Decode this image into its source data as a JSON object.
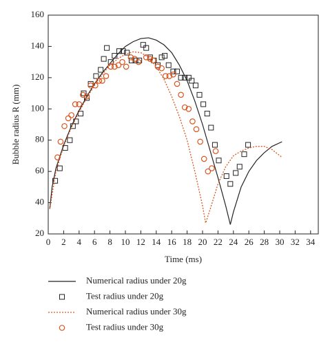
{
  "chart_data": {
    "type": "line",
    "x_label": "Time (ms)",
    "y_label": "Bubble radius R (mm)",
    "xlim": [
      0,
      35
    ],
    "ylim": [
      20,
      160
    ],
    "xticks": [
      0,
      2,
      4,
      6,
      8,
      10,
      12,
      14,
      16,
      18,
      20,
      22,
      24,
      26,
      28,
      30,
      32,
      34
    ],
    "yticks": [
      20,
      40,
      60,
      80,
      100,
      120,
      140,
      160
    ],
    "legend": "bottom",
    "series": [
      {
        "name": "Numerical radius under 20g",
        "color": "#222222",
        "style": "solid",
        "x": [
          0.2,
          0.5,
          1,
          2,
          3,
          4,
          5,
          6,
          7,
          8,
          9,
          10,
          11,
          12,
          13,
          14,
          15,
          16,
          17,
          18,
          19,
          20,
          21,
          22,
          23,
          23.6,
          24,
          25,
          26,
          27,
          28,
          29,
          30.3
        ],
        "values": [
          36,
          50,
          62,
          77,
          89,
          99,
          108,
          116,
          123,
          129,
          135,
          140,
          143,
          145,
          145.5,
          144,
          141,
          136,
          128,
          118,
          105,
          90,
          73,
          56,
          38,
          26,
          34,
          50,
          60,
          67,
          72,
          76,
          79
        ]
      },
      {
        "name": "Test radius under 20g",
        "color": "#222222",
        "style": "square",
        "x": [
          0.9,
          1.5,
          2.2,
          2.8,
          3.2,
          3.6,
          4.2,
          4.6,
          5.0,
          5.5,
          6.2,
          6.8,
          7.2,
          7.6,
          8.1,
          8.6,
          9.2,
          9.7,
          10.2,
          10.8,
          11.3,
          11.8,
          12.3,
          12.7,
          13.2,
          13.7,
          14.2,
          14.7,
          15.1,
          15.6,
          16.2,
          16.7,
          17.2,
          17.7,
          18.2,
          18.6,
          19.1,
          19.6,
          20.1,
          20.6,
          21.1,
          21.6,
          22.1,
          23.1,
          23.6,
          24.3,
          24.8,
          25.4,
          25.9
        ],
        "values": [
          54,
          62,
          75,
          80,
          89,
          92,
          97,
          110,
          107,
          116,
          121,
          125,
          132,
          139,
          130,
          134,
          137,
          137,
          136,
          131,
          131,
          131,
          141,
          139,
          133,
          131,
          128,
          133,
          134,
          128,
          124,
          124,
          120,
          120,
          120,
          118,
          115,
          109,
          103,
          97,
          88,
          77,
          67,
          57,
          52,
          59,
          63,
          71,
          77
        ]
      },
      {
        "name": "Numerical radius under 30g",
        "color": "#d9541e",
        "style": "dotted",
        "x": [
          0.2,
          1,
          2,
          3,
          4,
          5,
          6,
          7,
          8,
          9,
          10,
          11,
          12,
          13,
          14,
          15,
          16,
          17,
          18,
          19,
          20,
          20.4,
          21,
          22,
          23,
          24,
          25,
          26,
          27,
          28,
          29,
          30.3
        ],
        "values": [
          36,
          60,
          76,
          88,
          98,
          107,
          115,
          122,
          128,
          132,
          135,
          136.5,
          136,
          133,
          127,
          119,
          108,
          95,
          80,
          60,
          38,
          27,
          36,
          52,
          63,
          70,
          73,
          75,
          76,
          76,
          74,
          69
        ]
      },
      {
        "name": "Test radius under 30g",
        "color": "#d9541e",
        "style": "circle",
        "x": [
          1.2,
          1.6,
          2.1,
          2.6,
          3.0,
          3.5,
          4.0,
          4.5,
          5.0,
          5.5,
          6.1,
          6.6,
          7.0,
          7.5,
          8.1,
          8.6,
          9.1,
          9.6,
          10.1,
          10.7,
          11.2,
          11.7,
          12.7,
          13.2,
          13.6,
          14.2,
          14.7,
          15.2,
          15.7,
          16.2,
          16.7,
          17.2,
          17.7,
          18.2,
          18.7,
          19.2,
          19.7,
          20.2,
          20.7,
          21.2,
          21.7
        ],
        "values": [
          69,
          79,
          89,
          94,
          96,
          103,
          103,
          109,
          108,
          115,
          115,
          118,
          118,
          121,
          127,
          127,
          128,
          130,
          127,
          133,
          132,
          130,
          133,
          132,
          131,
          127,
          126,
          121,
          121,
          122,
          116,
          109,
          101,
          100,
          92,
          87,
          79,
          68,
          60,
          62,
          73
        ]
      }
    ]
  }
}
